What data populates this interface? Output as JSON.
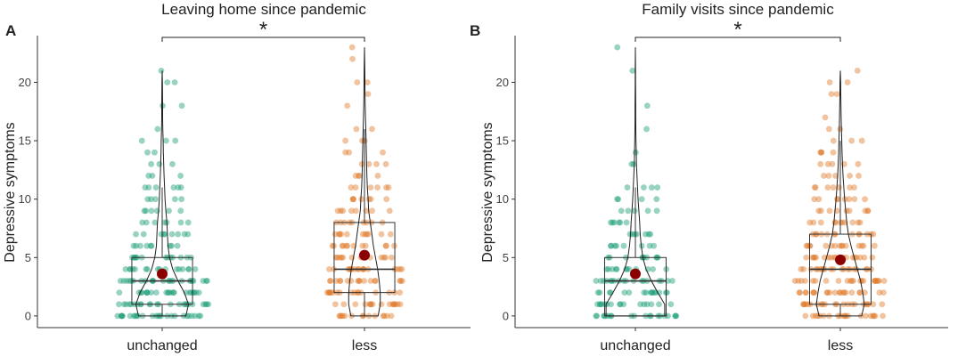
{
  "chart_data": [
    {
      "type": "violin-box-jitter",
      "panel_label": "A",
      "title": "Leaving home since pandemic",
      "xlabel": "",
      "ylabel": "Depressive symptoms",
      "ylim": [
        -1,
        24
      ],
      "yticks": [
        0,
        5,
        10,
        15,
        20
      ],
      "yticklabels": [
        "0",
        "5",
        "10",
        "15",
        "20"
      ],
      "categories": [
        "unchanged",
        "less"
      ],
      "colors": [
        "#1b9e77",
        "#e07b2a"
      ],
      "mean_color": "#8b0000",
      "significance": "*",
      "groups": [
        {
          "name": "unchanged",
          "box": {
            "q1": 1,
            "median": 3,
            "q3": 5,
            "whisker_low": 0,
            "whisker_high": 11
          },
          "mean": 3.6,
          "max": 21,
          "violin_halfwidth": [
            [
              0,
              0.45
            ],
            [
              1,
              0.5
            ],
            [
              2,
              0.42
            ],
            [
              3,
              0.3
            ],
            [
              4,
              0.2
            ],
            [
              5,
              0.14
            ],
            [
              6,
              0.11
            ],
            [
              7,
              0.1
            ],
            [
              8,
              0.09
            ],
            [
              9,
              0.07
            ],
            [
              10,
              0.055
            ],
            [
              11,
              0.045
            ],
            [
              12,
              0.035
            ],
            [
              13,
              0.028
            ],
            [
              14,
              0.022
            ],
            [
              15,
              0.018
            ],
            [
              16,
              0.012
            ],
            [
              17,
              0.009
            ],
            [
              18,
              0.008
            ],
            [
              19,
              0.006
            ],
            [
              20,
              0.005
            ],
            [
              21,
              0.0
            ]
          ],
          "points": [
            [
              0,
              26
            ],
            [
              1,
              24
            ],
            [
              2,
              22
            ],
            [
              3,
              24
            ],
            [
              4,
              16
            ],
            [
              5,
              13
            ],
            [
              6,
              9
            ],
            [
              7,
              9
            ],
            [
              8,
              7
            ],
            [
              9,
              6
            ],
            [
              10,
              5
            ],
            [
              11,
              6
            ],
            [
              12,
              3
            ],
            [
              13,
              3
            ],
            [
              14,
              2
            ],
            [
              15,
              3
            ],
            [
              16,
              1
            ],
            [
              18,
              2
            ],
            [
              20,
              2
            ],
            [
              21,
              1
            ]
          ]
        },
        {
          "name": "less",
          "box": {
            "q1": 2,
            "median": 4,
            "q3": 8,
            "whisker_low": 0,
            "whisker_high": 16
          },
          "mean": 5.2,
          "max": 23,
          "violin_halfwidth": [
            [
              0,
              0.26
            ],
            [
              1,
              0.3
            ],
            [
              2,
              0.3
            ],
            [
              3,
              0.28
            ],
            [
              4,
              0.25
            ],
            [
              5,
              0.21
            ],
            [
              6,
              0.17
            ],
            [
              7,
              0.14
            ],
            [
              8,
              0.11
            ],
            [
              9,
              0.08
            ],
            [
              10,
              0.07
            ],
            [
              11,
              0.055
            ],
            [
              12,
              0.045
            ],
            [
              13,
              0.04
            ],
            [
              14,
              0.035
            ],
            [
              15,
              0.03
            ],
            [
              16,
              0.025
            ],
            [
              17,
              0.018
            ],
            [
              18,
              0.014
            ],
            [
              19,
              0.011
            ],
            [
              20,
              0.009
            ],
            [
              21,
              0.006
            ],
            [
              22,
              0.004
            ],
            [
              23,
              0.0
            ]
          ],
          "points": [
            [
              0,
              14
            ],
            [
              1,
              16
            ],
            [
              2,
              17
            ],
            [
              3,
              17
            ],
            [
              4,
              17
            ],
            [
              5,
              14
            ],
            [
              6,
              12
            ],
            [
              7,
              11
            ],
            [
              8,
              9
            ],
            [
              9,
              8
            ],
            [
              10,
              7
            ],
            [
              11,
              6
            ],
            [
              12,
              4
            ],
            [
              13,
              4
            ],
            [
              14,
              3
            ],
            [
              15,
              3
            ],
            [
              16,
              2
            ],
            [
              18,
              1
            ],
            [
              19,
              1
            ],
            [
              20,
              2
            ],
            [
              22,
              1
            ],
            [
              23,
              1
            ]
          ]
        }
      ]
    },
    {
      "type": "violin-box-jitter",
      "panel_label": "B",
      "title": "Family visits since pandemic",
      "xlabel": "",
      "ylabel": "Depressive symptoms",
      "ylim": [
        -1,
        24
      ],
      "yticks": [
        0,
        5,
        10,
        15,
        20
      ],
      "yticklabels": [
        "0",
        "5",
        "10",
        "15",
        "20"
      ],
      "categories": [
        "unchanged",
        "less"
      ],
      "colors": [
        "#1b9e77",
        "#e07b2a"
      ],
      "mean_color": "#8b0000",
      "significance": "*",
      "groups": [
        {
          "name": "unchanged",
          "box": {
            "q1": 0,
            "median": 3,
            "q3": 5,
            "whisker_low": 0,
            "whisker_high": 11
          },
          "mean": 3.6,
          "max": 23,
          "violin_halfwidth": [
            [
              0,
              0.55
            ],
            [
              1,
              0.55
            ],
            [
              2,
              0.42
            ],
            [
              3,
              0.3
            ],
            [
              4,
              0.2
            ],
            [
              5,
              0.14
            ],
            [
              6,
              0.11
            ],
            [
              7,
              0.09
            ],
            [
              8,
              0.08
            ],
            [
              9,
              0.065
            ],
            [
              10,
              0.05
            ],
            [
              11,
              0.04
            ],
            [
              12,
              0.03
            ],
            [
              13,
              0.02
            ],
            [
              14,
              0.016
            ],
            [
              15,
              0.012
            ],
            [
              16,
              0.009
            ],
            [
              17,
              0.007
            ],
            [
              18,
              0.006
            ],
            [
              19,
              0.005
            ],
            [
              20,
              0.004
            ],
            [
              21,
              0.003
            ],
            [
              22,
              0.002
            ],
            [
              23,
              0.0
            ]
          ],
          "points": [
            [
              0,
              20
            ],
            [
              1,
              16
            ],
            [
              2,
              16
            ],
            [
              3,
              18
            ],
            [
              4,
              12
            ],
            [
              5,
              10
            ],
            [
              6,
              8
            ],
            [
              7,
              7
            ],
            [
              8,
              6
            ],
            [
              9,
              5
            ],
            [
              10,
              4
            ],
            [
              11,
              4
            ],
            [
              13,
              2
            ],
            [
              14,
              1
            ],
            [
              16,
              1
            ],
            [
              18,
              1
            ],
            [
              21,
              1
            ],
            [
              23,
              1
            ]
          ]
        },
        {
          "name": "less",
          "box": {
            "q1": 1,
            "median": 4,
            "q3": 7,
            "whisker_low": 0,
            "whisker_high": 15
          },
          "mean": 4.8,
          "max": 21,
          "violin_halfwidth": [
            [
              0,
              0.4
            ],
            [
              1,
              0.45
            ],
            [
              2,
              0.42
            ],
            [
              3,
              0.38
            ],
            [
              4,
              0.32
            ],
            [
              5,
              0.26
            ],
            [
              6,
              0.2
            ],
            [
              7,
              0.15
            ],
            [
              8,
              0.12
            ],
            [
              9,
              0.1
            ],
            [
              10,
              0.08
            ],
            [
              11,
              0.065
            ],
            [
              12,
              0.05
            ],
            [
              13,
              0.04
            ],
            [
              14,
              0.032
            ],
            [
              15,
              0.026
            ],
            [
              16,
              0.02
            ],
            [
              17,
              0.015
            ],
            [
              18,
              0.012
            ],
            [
              19,
              0.009
            ],
            [
              20,
              0.006
            ],
            [
              21,
              0.0
            ]
          ],
          "points": [
            [
              0,
              20
            ],
            [
              1,
              22
            ],
            [
              2,
              22
            ],
            [
              3,
              22
            ],
            [
              4,
              20
            ],
            [
              5,
              18
            ],
            [
              6,
              15
            ],
            [
              7,
              13
            ],
            [
              8,
              11
            ],
            [
              9,
              9
            ],
            [
              10,
              8
            ],
            [
              11,
              7
            ],
            [
              12,
              5
            ],
            [
              13,
              5
            ],
            [
              14,
              4
            ],
            [
              15,
              3
            ],
            [
              16,
              2
            ],
            [
              17,
              1
            ],
            [
              19,
              2
            ],
            [
              20,
              2
            ],
            [
              21,
              1
            ]
          ]
        }
      ]
    }
  ]
}
